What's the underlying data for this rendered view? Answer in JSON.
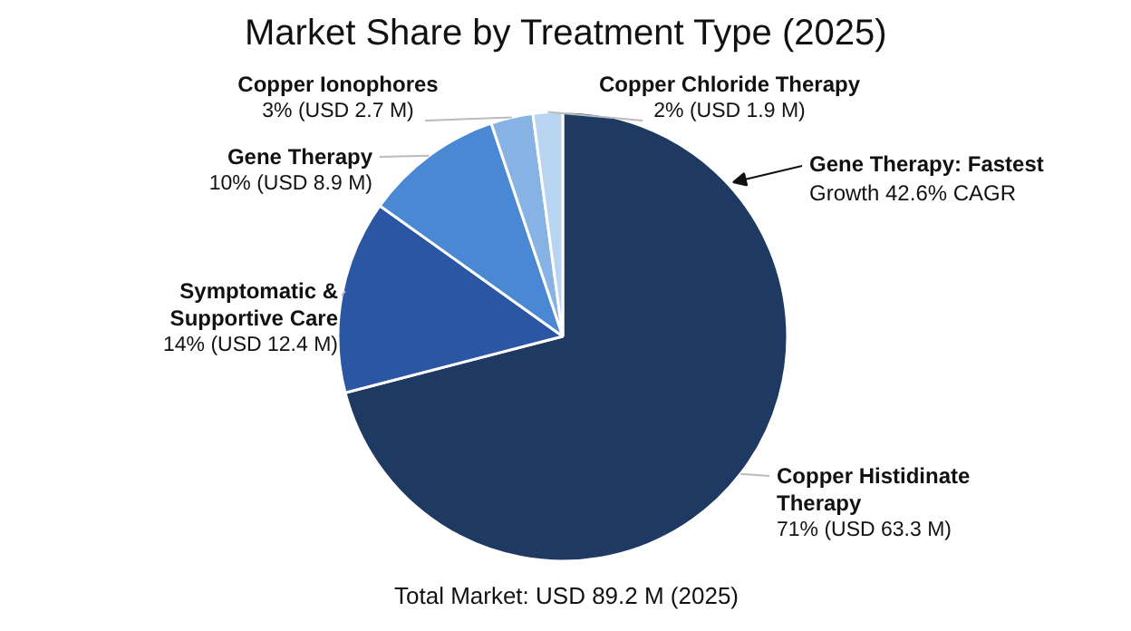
{
  "chart_data": {
    "type": "pie",
    "title": "Market Share by Treatment Type (2025)",
    "categories": [
      "Copper Histidinate Therapy",
      "Symptomatic & Supportive Care",
      "Gene Therapy",
      "Copper Ionophores",
      "Copper Chloride Therapy"
    ],
    "values": [
      63.3,
      12.4,
      8.9,
      2.7,
      1.9
    ],
    "colors": [
      "#1e3a62",
      "#2b56a3",
      "#4a88d4",
      "#86b3e3",
      "#b9d4f0"
    ],
    "value_labels": [
      "71% (USD 63.3 M)",
      "14% (USD 12.4 M)",
      "10% (USD 8.9 M)",
      "3% (USD 2.7 M)",
      "2% (USD 1.9 M)"
    ],
    "annotations": [
      "Gene Therapy: Fastest Growth 42.6% CAGR",
      "Total Market: USD 89.2 M (2025)"
    ]
  }
}
